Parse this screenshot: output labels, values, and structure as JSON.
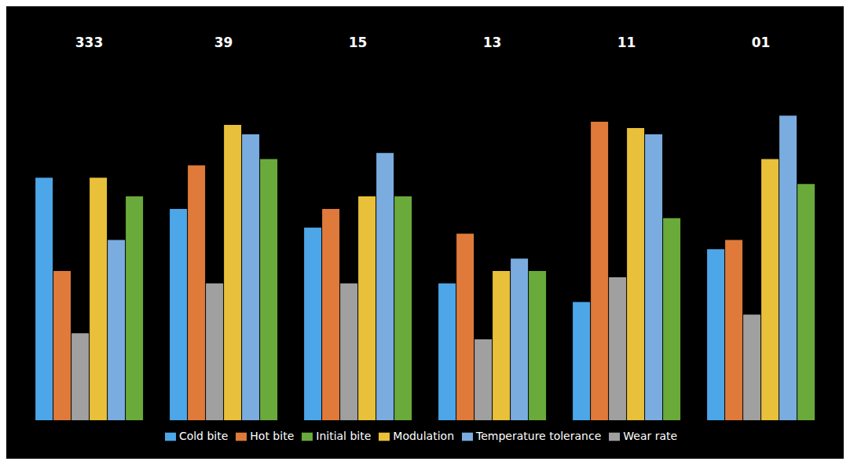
{
  "chart_data": {
    "type": "bar",
    "categories": [
      "333",
      "39",
      "15",
      "13",
      "11",
      "01"
    ],
    "series": [
      {
        "name": "Cold bite",
        "color": "#4da6e8",
        "values": [
          78,
          68,
          62,
          44,
          38,
          55
        ]
      },
      {
        "name": "Hot bite",
        "color": "#e07a3a",
        "values": [
          48,
          82,
          68,
          60,
          96,
          58
        ]
      },
      {
        "name": "Wear rate",
        "color": "#a0a0a0",
        "values": [
          28,
          44,
          44,
          26,
          46,
          34
        ]
      },
      {
        "name": "Modulation",
        "color": "#e8c03a",
        "values": [
          78,
          95,
          72,
          48,
          94,
          84
        ]
      },
      {
        "name": "Temperature tolerance",
        "color": "#7aace0",
        "values": [
          58,
          92,
          86,
          52,
          92,
          98
        ]
      },
      {
        "name": "Initial bite",
        "color": "#6aaa3a",
        "values": [
          72,
          84,
          72,
          48,
          65,
          76
        ]
      }
    ],
    "ylim": [
      0,
      118
    ],
    "grid": false,
    "legend": "bottom",
    "tick_labels": "x"
  }
}
